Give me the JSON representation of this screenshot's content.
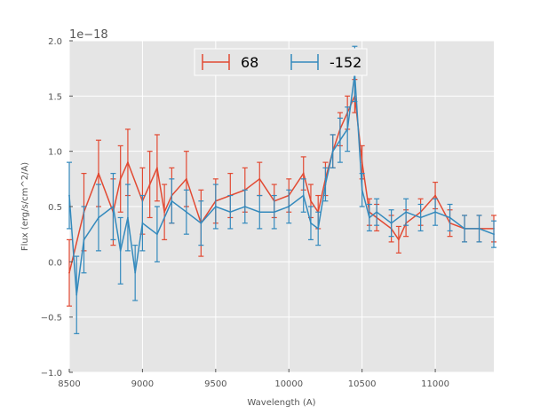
{
  "chart_data": {
    "type": "line",
    "title": "",
    "xlabel": "Wavelength (A)",
    "ylabel": "Flux (erg/s/cm^2/A)",
    "y_multiplier_label": "1e−18",
    "xlim": [
      8500,
      11400
    ],
    "ylim": [
      -1.0,
      2.0
    ],
    "x_ticks": [
      8500,
      9000,
      9500,
      10000,
      10500,
      11000
    ],
    "x_tick_labels": [
      "8500",
      "9000",
      "9500",
      "10000",
      "10500",
      "11000"
    ],
    "y_ticks": [
      -1.0,
      -0.5,
      0.0,
      0.5,
      1.0,
      1.5,
      2.0
    ],
    "y_tick_labels": [
      "−1.0",
      "−0.5",
      "0.0",
      "0.5",
      "1.0",
      "1.5",
      "2.0"
    ],
    "grid": true,
    "legend_position": "top-center",
    "error_bars": true,
    "series": [
      {
        "name": "68",
        "color": "#e24a33",
        "x": [
          8500,
          8600,
          8700,
          8800,
          8850,
          8900,
          9000,
          9050,
          9100,
          9150,
          9200,
          9300,
          9400,
          9500,
          9600,
          9700,
          9800,
          9900,
          10000,
          10100,
          10150,
          10200,
          10250,
          10300,
          10350,
          10400,
          10450,
          10500,
          10550,
          10600,
          10700,
          10750,
          10800,
          10900,
          11000,
          11100,
          11200,
          11300,
          11400
        ],
        "values": [
          -0.1,
          0.45,
          0.8,
          0.45,
          0.75,
          0.9,
          0.55,
          0.7,
          0.85,
          0.45,
          0.6,
          0.75,
          0.35,
          0.55,
          0.6,
          0.65,
          0.75,
          0.55,
          0.6,
          0.8,
          0.55,
          0.45,
          0.75,
          1.0,
          1.2,
          1.35,
          1.5,
          0.9,
          0.45,
          0.4,
          0.3,
          0.2,
          0.35,
          0.45,
          0.6,
          0.35,
          0.3,
          0.3,
          0.3
        ],
        "errors": [
          0.3,
          0.35,
          0.3,
          0.3,
          0.3,
          0.3,
          0.3,
          0.3,
          0.3,
          0.25,
          0.25,
          0.25,
          0.3,
          0.2,
          0.2,
          0.2,
          0.15,
          0.15,
          0.15,
          0.15,
          0.15,
          0.15,
          0.15,
          0.15,
          0.15,
          0.15,
          0.15,
          0.15,
          0.12,
          0.12,
          0.12,
          0.12,
          0.12,
          0.12,
          0.12,
          0.12,
          0.12,
          0.12,
          0.12
        ]
      },
      {
        "name": "-152",
        "color": "#348abd",
        "x": [
          8500,
          8550,
          8600,
          8700,
          8800,
          8850,
          8900,
          8950,
          9000,
          9100,
          9200,
          9300,
          9400,
          9500,
          9600,
          9700,
          9800,
          9900,
          10000,
          10100,
          10150,
          10200,
          10250,
          10300,
          10350,
          10400,
          10450,
          10500,
          10550,
          10600,
          10700,
          10800,
          10900,
          11000,
          11100,
          11200,
          11300,
          11400
        ],
        "values": [
          0.6,
          -0.3,
          0.2,
          0.4,
          0.5,
          0.1,
          0.4,
          -0.1,
          0.35,
          0.25,
          0.55,
          0.45,
          0.35,
          0.5,
          0.45,
          0.5,
          0.45,
          0.45,
          0.5,
          0.6,
          0.35,
          0.3,
          0.7,
          1.0,
          1.1,
          1.2,
          1.7,
          0.65,
          0.4,
          0.45,
          0.35,
          0.45,
          0.4,
          0.45,
          0.4,
          0.3,
          0.3,
          0.25
        ],
        "errors": [
          0.3,
          0.35,
          0.3,
          0.3,
          0.3,
          0.3,
          0.3,
          0.25,
          0.25,
          0.25,
          0.2,
          0.2,
          0.2,
          0.2,
          0.15,
          0.15,
          0.15,
          0.15,
          0.15,
          0.15,
          0.15,
          0.15,
          0.15,
          0.15,
          0.2,
          0.2,
          0.25,
          0.15,
          0.12,
          0.12,
          0.12,
          0.12,
          0.12,
          0.12,
          0.12,
          0.12,
          0.12,
          0.12
        ]
      }
    ]
  }
}
